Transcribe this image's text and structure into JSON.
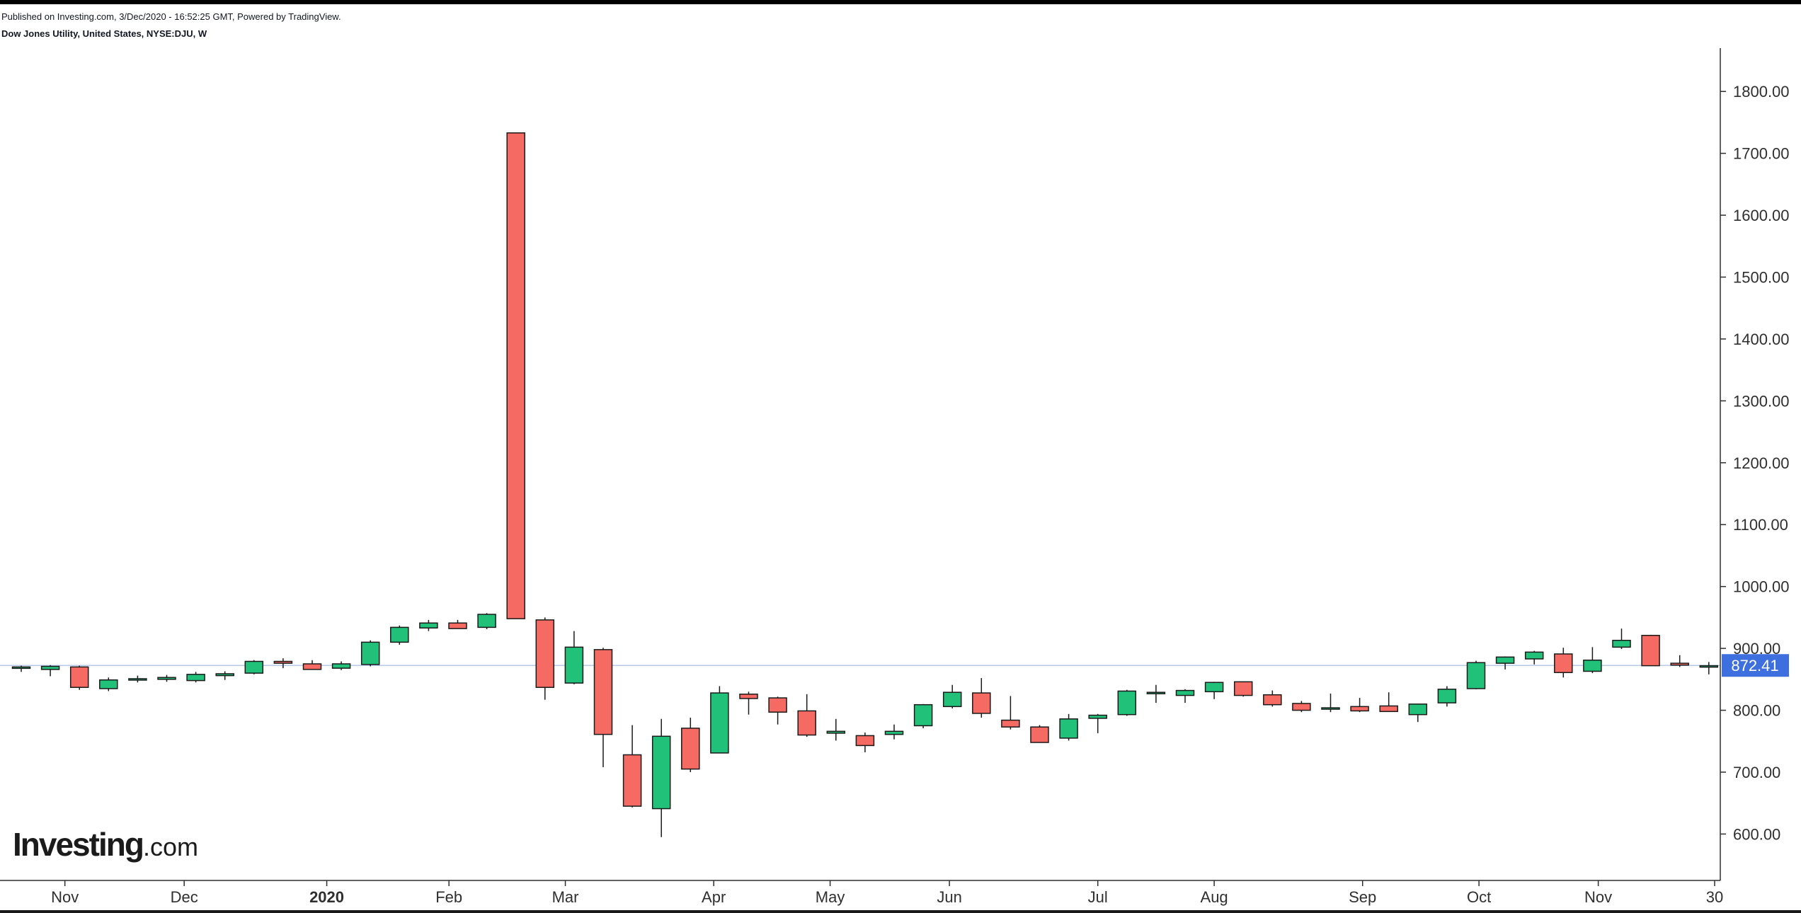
{
  "header": {
    "published": "Published on Investing.com, 3/Dec/2020 - 16:52:25 GMT, Powered by TradingView.",
    "symbol": "Dow Jones Utility, United States, NYSE:DJU, W"
  },
  "logo": {
    "word": "Investing",
    "suffix": ".com"
  },
  "colors": {
    "up": "#22c17a",
    "down": "#f56a63",
    "outline": "#1a1a1a",
    "last_price_line": "#b7c9e8",
    "last_price_badge": "#3d6fdf",
    "axis_text": "#2f2f2f"
  },
  "chart_data": {
    "type": "candlestick",
    "interval": "W",
    "ylim": [
      525,
      1870
    ],
    "grid": false,
    "y_axis_position": "right",
    "y_ticks": [
      "600.00",
      "700.00",
      "800.00",
      "900.00",
      "1000.00",
      "1100.00",
      "1200.00",
      "1300.00",
      "1400.00",
      "1500.00",
      "1600.00",
      "1700.00",
      "1800.00"
    ],
    "x_ticks": [
      {
        "label": "Nov",
        "bold": false,
        "week": 1.5
      },
      {
        "label": "Dec",
        "bold": false,
        "week": 5.6
      },
      {
        "label": "2020",
        "bold": true,
        "week": 10.5
      },
      {
        "label": "Feb",
        "bold": false,
        "week": 14.7
      },
      {
        "label": "Mar",
        "bold": false,
        "week": 18.7
      },
      {
        "label": "Apr",
        "bold": false,
        "week": 23.8
      },
      {
        "label": "May",
        "bold": false,
        "week": 27.8
      },
      {
        "label": "Jun",
        "bold": false,
        "week": 31.9
      },
      {
        "label": "Jul",
        "bold": false,
        "week": 37.0
      },
      {
        "label": "Aug",
        "bold": false,
        "week": 41.0
      },
      {
        "label": "Sep",
        "bold": false,
        "week": 46.1
      },
      {
        "label": "Oct",
        "bold": false,
        "week": 50.1
      },
      {
        "label": "Nov",
        "bold": false,
        "week": 54.2
      },
      {
        "label": "30",
        "bold": false,
        "week": 58.2
      }
    ],
    "last_price": 872.41,
    "last_price_label": "872.41",
    "candles": [
      {
        "o": 868,
        "h": 872,
        "l": 862,
        "c": 870
      },
      {
        "o": 866,
        "h": 873,
        "l": 855,
        "c": 871
      },
      {
        "o": 870,
        "h": 872,
        "l": 833,
        "c": 837
      },
      {
        "o": 835,
        "h": 853,
        "l": 831,
        "c": 849
      },
      {
        "o": 849,
        "h": 856,
        "l": 845,
        "c": 851
      },
      {
        "o": 850,
        "h": 857,
        "l": 846,
        "c": 853
      },
      {
        "o": 848,
        "h": 862,
        "l": 845,
        "c": 858
      },
      {
        "o": 856,
        "h": 863,
        "l": 849,
        "c": 859
      },
      {
        "o": 860,
        "h": 881,
        "l": 858,
        "c": 879
      },
      {
        "o": 879,
        "h": 884,
        "l": 868,
        "c": 876
      },
      {
        "o": 875,
        "h": 881,
        "l": 866,
        "c": 866
      },
      {
        "o": 868,
        "h": 879,
        "l": 865,
        "c": 875
      },
      {
        "o": 874,
        "h": 913,
        "l": 871,
        "c": 910
      },
      {
        "o": 910,
        "h": 937,
        "l": 906,
        "c": 934
      },
      {
        "o": 933,
        "h": 946,
        "l": 928,
        "c": 941
      },
      {
        "o": 941,
        "h": 946,
        "l": 932,
        "c": 932
      },
      {
        "o": 934,
        "h": 957,
        "l": 931,
        "c": 955
      },
      {
        "o": 1733,
        "h": 1733,
        "l": 948,
        "c": 948
      },
      {
        "o": 946,
        "h": 950,
        "l": 817,
        "c": 837
      },
      {
        "o": 844,
        "h": 928,
        "l": 842,
        "c": 902
      },
      {
        "o": 898,
        "h": 901,
        "l": 708,
        "c": 761
      },
      {
        "o": 728,
        "h": 776,
        "l": 643,
        "c": 645
      },
      {
        "o": 641,
        "h": 786,
        "l": 595,
        "c": 758
      },
      {
        "o": 771,
        "h": 788,
        "l": 700,
        "c": 705
      },
      {
        "o": 731,
        "h": 839,
        "l": 731,
        "c": 828
      },
      {
        "o": 826,
        "h": 830,
        "l": 793,
        "c": 819
      },
      {
        "o": 820,
        "h": 822,
        "l": 777,
        "c": 797
      },
      {
        "o": 799,
        "h": 826,
        "l": 757,
        "c": 760
      },
      {
        "o": 763,
        "h": 786,
        "l": 751,
        "c": 766
      },
      {
        "o": 759,
        "h": 764,
        "l": 732,
        "c": 743
      },
      {
        "o": 761,
        "h": 777,
        "l": 753,
        "c": 766
      },
      {
        "o": 775,
        "h": 810,
        "l": 771,
        "c": 809
      },
      {
        "o": 806,
        "h": 841,
        "l": 803,
        "c": 829
      },
      {
        "o": 828,
        "h": 852,
        "l": 788,
        "c": 795
      },
      {
        "o": 784,
        "h": 823,
        "l": 769,
        "c": 773
      },
      {
        "o": 773,
        "h": 776,
        "l": 748,
        "c": 748
      },
      {
        "o": 755,
        "h": 794,
        "l": 751,
        "c": 786
      },
      {
        "o": 787,
        "h": 794,
        "l": 763,
        "c": 792
      },
      {
        "o": 793,
        "h": 833,
        "l": 791,
        "c": 831
      },
      {
        "o": 827,
        "h": 841,
        "l": 812,
        "c": 829
      },
      {
        "o": 824,
        "h": 834,
        "l": 812,
        "c": 832
      },
      {
        "o": 830,
        "h": 846,
        "l": 818,
        "c": 845
      },
      {
        "o": 846,
        "h": 846,
        "l": 822,
        "c": 824
      },
      {
        "o": 825,
        "h": 832,
        "l": 806,
        "c": 809
      },
      {
        "o": 811,
        "h": 815,
        "l": 797,
        "c": 800
      },
      {
        "o": 803,
        "h": 827,
        "l": 797,
        "c": 804
      },
      {
        "o": 806,
        "h": 820,
        "l": 797,
        "c": 799
      },
      {
        "o": 807,
        "h": 829,
        "l": 798,
        "c": 798
      },
      {
        "o": 793,
        "h": 810,
        "l": 781,
        "c": 810
      },
      {
        "o": 812,
        "h": 839,
        "l": 806,
        "c": 834
      },
      {
        "o": 835,
        "h": 880,
        "l": 834,
        "c": 877
      },
      {
        "o": 876,
        "h": 887,
        "l": 866,
        "c": 886
      },
      {
        "o": 883,
        "h": 896,
        "l": 874,
        "c": 894
      },
      {
        "o": 891,
        "h": 901,
        "l": 853,
        "c": 861
      },
      {
        "o": 863,
        "h": 902,
        "l": 860,
        "c": 881
      },
      {
        "o": 902,
        "h": 932,
        "l": 899,
        "c": 913
      },
      {
        "o": 921,
        "h": 922,
        "l": 872,
        "c": 872
      },
      {
        "o": 876,
        "h": 889,
        "l": 870,
        "c": 873
      },
      {
        "o": 871,
        "h": 878,
        "l": 858,
        "c": 872
      }
    ]
  }
}
